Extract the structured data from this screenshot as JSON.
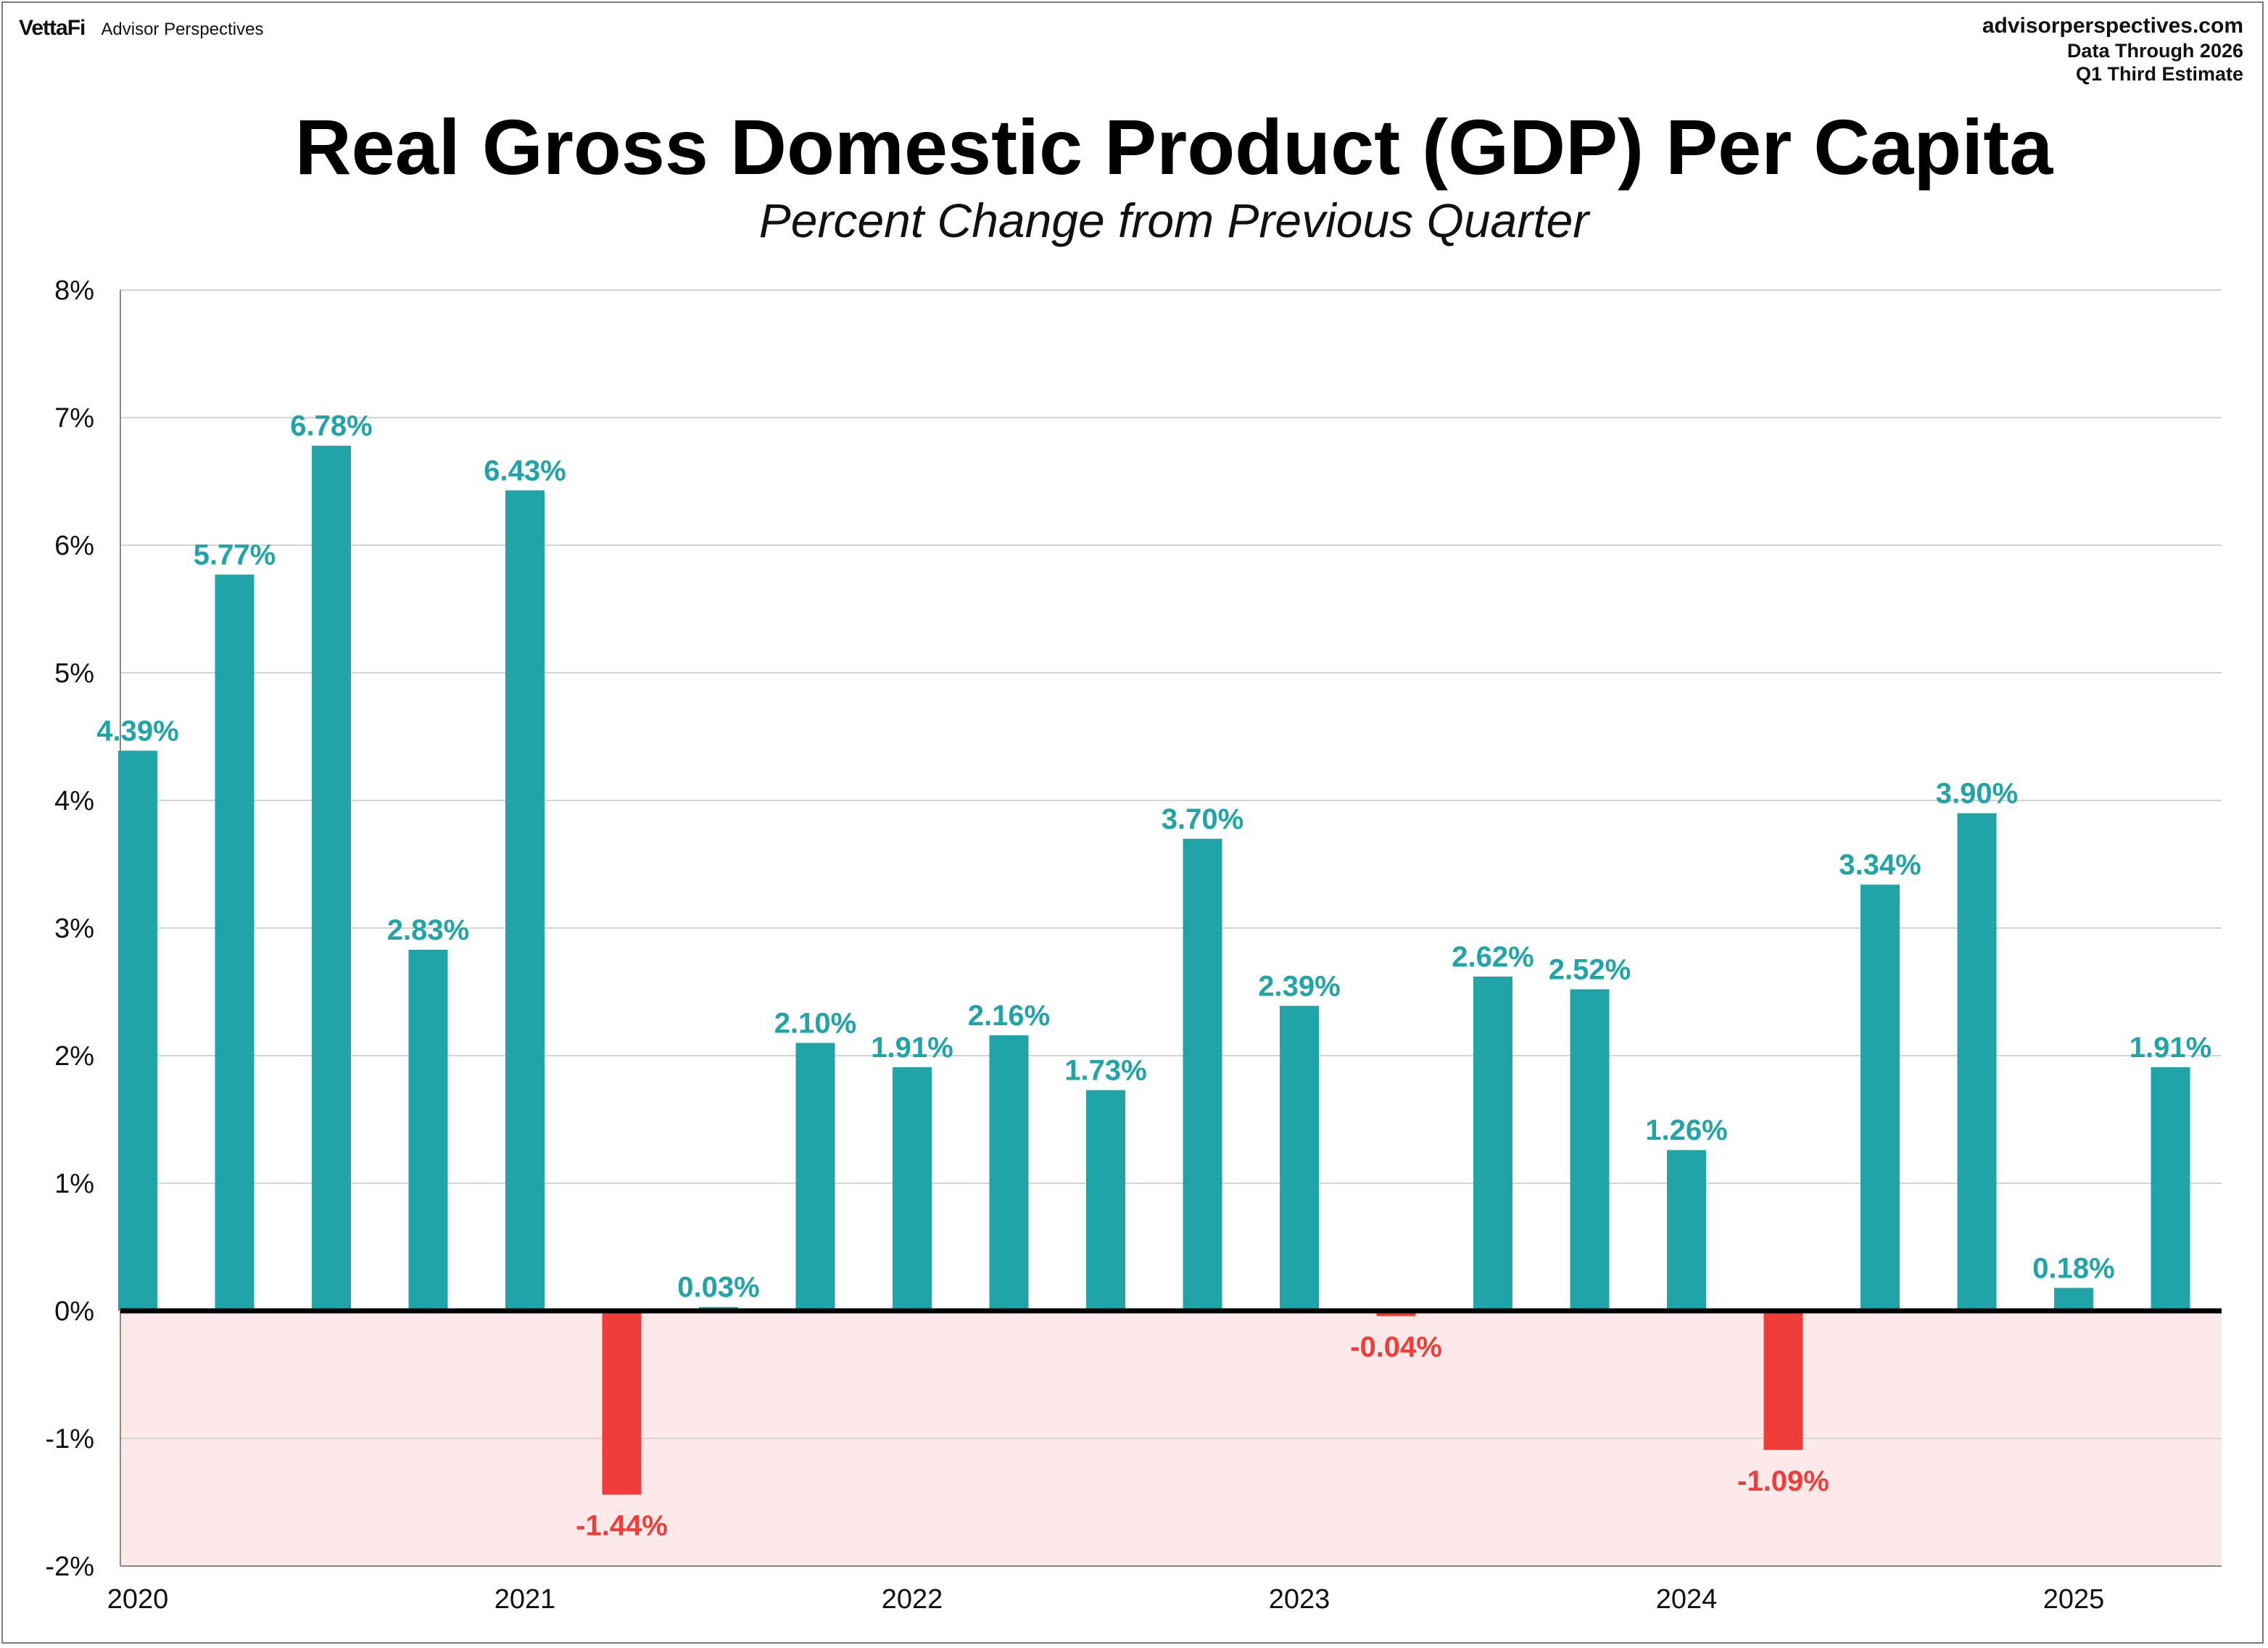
{
  "header": {
    "brand_logo": "VettaFi",
    "brand_sub": "Advisor Perspectives",
    "site": "advisorperspectives.com",
    "data_through": "Data Through 2026",
    "estimate": "Q1 Third Estimate"
  },
  "colors": {
    "positive": "#20a4a8",
    "negative": "#ef3e3a",
    "negative_band": "#fde9ea",
    "grid": "#d4d4d4",
    "zero_line": "#000000"
  },
  "chart_data": {
    "type": "bar",
    "title": "Real Gross Domestic Product (GDP) Per Capita",
    "subtitle": "Percent Change from Previous Quarter",
    "xlabel": "",
    "ylabel": "",
    "ylim": [
      -2,
      8
    ],
    "yticks": [
      "-2%",
      "-1%",
      "0%",
      "1%",
      "2%",
      "3%",
      "4%",
      "5%",
      "6%",
      "7%",
      "8%"
    ],
    "ytick_values": [
      -2,
      -1,
      0,
      1,
      2,
      3,
      4,
      5,
      6,
      7,
      8
    ],
    "year_ticks": [
      "2020",
      "2021",
      "2022",
      "2023",
      "2024",
      "2025"
    ],
    "values": [
      4.39,
      5.77,
      6.78,
      2.83,
      6.43,
      -1.44,
      0.03,
      2.1,
      1.91,
      2.16,
      1.73,
      3.7,
      2.39,
      -0.04,
      2.62,
      2.52,
      1.26,
      -1.09,
      3.34,
      3.9,
      0.18,
      1.91
    ],
    "labels": [
      "4.39%",
      "5.77%",
      "6.78%",
      "2.83%",
      "6.43%",
      "-1.44%",
      "0.03%",
      "2.10%",
      "1.91%",
      "2.16%",
      "1.73%",
      "3.70%",
      "2.39%",
      "-0.04%",
      "2.62%",
      "2.52%",
      "1.26%",
      "-1.09%",
      "3.34%",
      "3.90%",
      "0.18%",
      "1.91%"
    ],
    "grid": true,
    "negative_region_shaded": true
  }
}
